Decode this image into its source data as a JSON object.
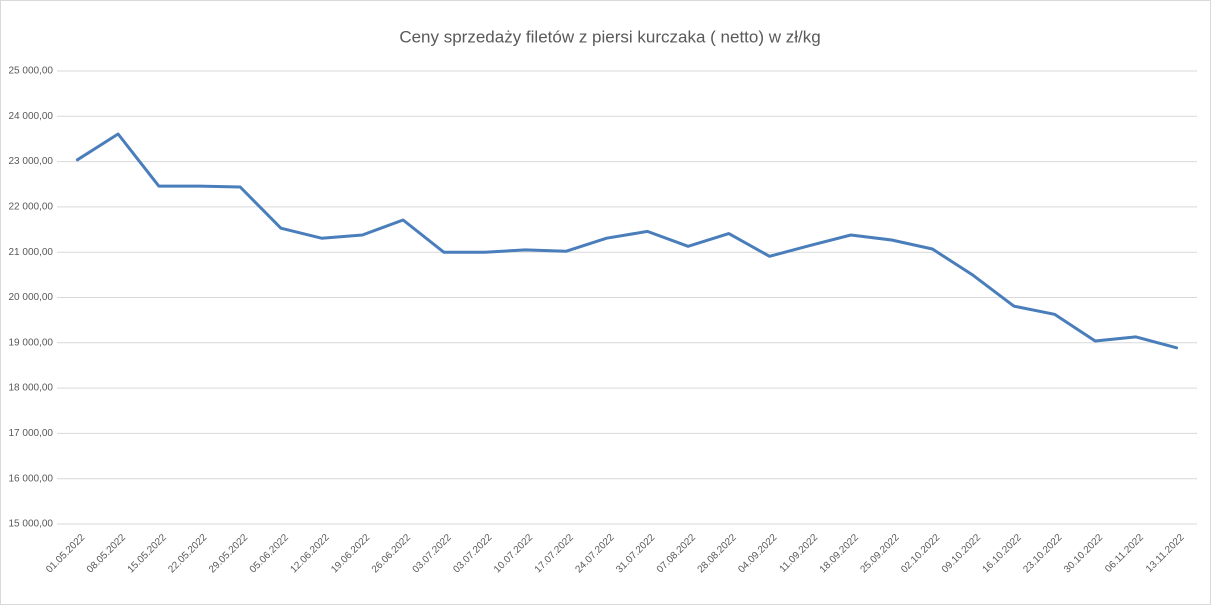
{
  "chart_data": {
    "type": "line",
    "title": "Ceny sprzedaży filetów z piersi kurczaka ( netto) w zł/kg",
    "categories": [
      "01.05.2022",
      "08.05.2022",
      "15.05.2022",
      "22.05.2022",
      "29.05.2022",
      "05.06.2022",
      "12.06.2022",
      "19.06.2022",
      "26.06.2022",
      "03.07.2022",
      "03.07.2022",
      "10.07.2022",
      "17.07.2022",
      "24.07.2022",
      "31.07.2022",
      "07.08.2022",
      "28.08.2022",
      "04.09.2022",
      "11.09.2022",
      "18.09.2022",
      "25.09.2022",
      "02.10.2022",
      "09.10.2022",
      "16.10.2022",
      "23.10.2022",
      "30.10.2022",
      "06.11.2022",
      "13.11.2022"
    ],
    "values": [
      23040,
      23610,
      22460,
      22460,
      22440,
      21530,
      21310,
      21380,
      21710,
      21000,
      21000,
      21050,
      21020,
      21310,
      21460,
      21130,
      21410,
      20910,
      21150,
      21380,
      21270,
      21070,
      20490,
      19810,
      19630,
      19040,
      19130,
      18890
    ],
    "color": "#4a7ebb",
    "ylim": [
      15000,
      25000
    ],
    "yticks": [
      {
        "value": 15000,
        "label": "15 000,00"
      },
      {
        "value": 16000,
        "label": "16 000,00"
      },
      {
        "value": 17000,
        "label": "17 000,00"
      },
      {
        "value": 18000,
        "label": "18 000,00"
      },
      {
        "value": 19000,
        "label": "19 000,00"
      },
      {
        "value": 20000,
        "label": "20 000,00"
      },
      {
        "value": 21000,
        "label": "21 000,00"
      },
      {
        "value": 22000,
        "label": "22 000,00"
      },
      {
        "value": 23000,
        "label": "23 000,00"
      },
      {
        "value": 24000,
        "label": "24 000,00"
      },
      {
        "value": 25000,
        "label": "25 000,00"
      }
    ],
    "grid": true
  }
}
